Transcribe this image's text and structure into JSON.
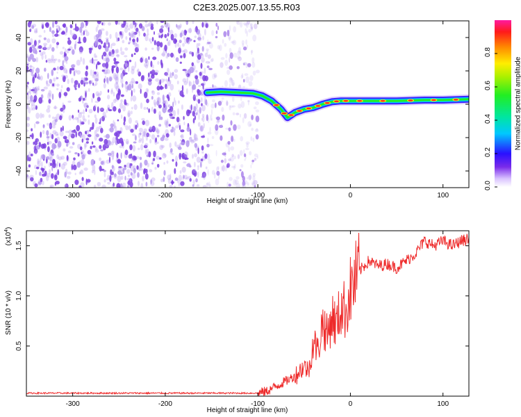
{
  "title": "C2E3.2025.007.13.55.R03",
  "colors": {
    "axis": "#000000",
    "snr_line": "#ee2a2a",
    "noise": "#7b3fe0",
    "track_core": "#ff2a2a"
  },
  "chart_data": [
    {
      "type": "heatmap",
      "name": "spectrogram",
      "xlabel": "Height of straight line (km)",
      "ylabel": "Frequency (Hz)",
      "xlim": [
        -350,
        128
      ],
      "ylim": [
        -50,
        50
      ],
      "xticks": [
        -300,
        -200,
        -100,
        0,
        100
      ],
      "yticks": [
        -40,
        -20,
        0,
        20,
        40
      ],
      "xtick_labels": [
        "-300",
        "-200",
        "-100",
        "0",
        "100"
      ],
      "ytick_labels": [
        "-40",
        "-20",
        "0",
        "20",
        "40"
      ],
      "noise_regions": [
        {
          "x_from": -350,
          "x_to": -155,
          "density": "high"
        },
        {
          "x_from": -155,
          "x_to": -100,
          "density": "low"
        }
      ],
      "signal_track": {
        "x": [
          -155,
          -140,
          -120,
          -105,
          -95,
          -85,
          -75,
          -68,
          -60,
          -50,
          -40,
          -30,
          -20,
          -10,
          0,
          20,
          50,
          80,
          100,
          128
        ],
        "freq_hz": [
          7,
          7.5,
          7,
          6.5,
          5,
          2,
          -3,
          -8,
          -5,
          -3,
          -2,
          0,
          1.5,
          2,
          2,
          2,
          2,
          2.5,
          2.5,
          3
        ]
      },
      "colorbar": {
        "label": "Normalized spectral amplitude",
        "range": [
          0,
          1
        ],
        "ticks": [
          0.0,
          0.2,
          0.4,
          0.6,
          0.8
        ],
        "tick_labels": [
          "0.0",
          "0.2",
          "0.4",
          "0.6",
          "0.8"
        ]
      }
    },
    {
      "type": "line",
      "name": "snr",
      "xlabel": "Height of straight line (km)",
      "ylabel": "SNR (10 * v/v)",
      "multiplier_label": "(x10",
      "multiplier_exp": "4",
      "multiplier_close": ")",
      "xlim": [
        -350,
        128
      ],
      "ylim": [
        0,
        1.65
      ],
      "xticks": [
        -300,
        -200,
        -100,
        0,
        100
      ],
      "yticks": [
        0.5,
        1.0,
        1.5
      ],
      "xtick_labels": [
        "-300",
        "-200",
        "-100",
        "0",
        "100"
      ],
      "ytick_labels": [
        "0.5",
        "1.0",
        "1.5"
      ],
      "series": [
        {
          "name": "SNR",
          "x": [
            -350,
            -300,
            -200,
            -100,
            -90,
            -80,
            -70,
            -60,
            -50,
            -45,
            -40,
            -35,
            -30,
            -25,
            -20,
            -15,
            -10,
            -5,
            0,
            5,
            10,
            20,
            30,
            40,
            50,
            60,
            70,
            80,
            90,
            100,
            110,
            120,
            128
          ],
          "y": [
            0.03,
            0.03,
            0.03,
            0.03,
            0.05,
            0.1,
            0.15,
            0.2,
            0.3,
            0.25,
            0.55,
            0.45,
            0.75,
            0.6,
            0.8,
            0.7,
            0.9,
            0.85,
            1.05,
            1.15,
            1.25,
            1.35,
            1.3,
            1.32,
            1.28,
            1.35,
            1.42,
            1.55,
            1.5,
            1.55,
            1.5,
            1.55,
            1.57
          ]
        }
      ]
    }
  ]
}
